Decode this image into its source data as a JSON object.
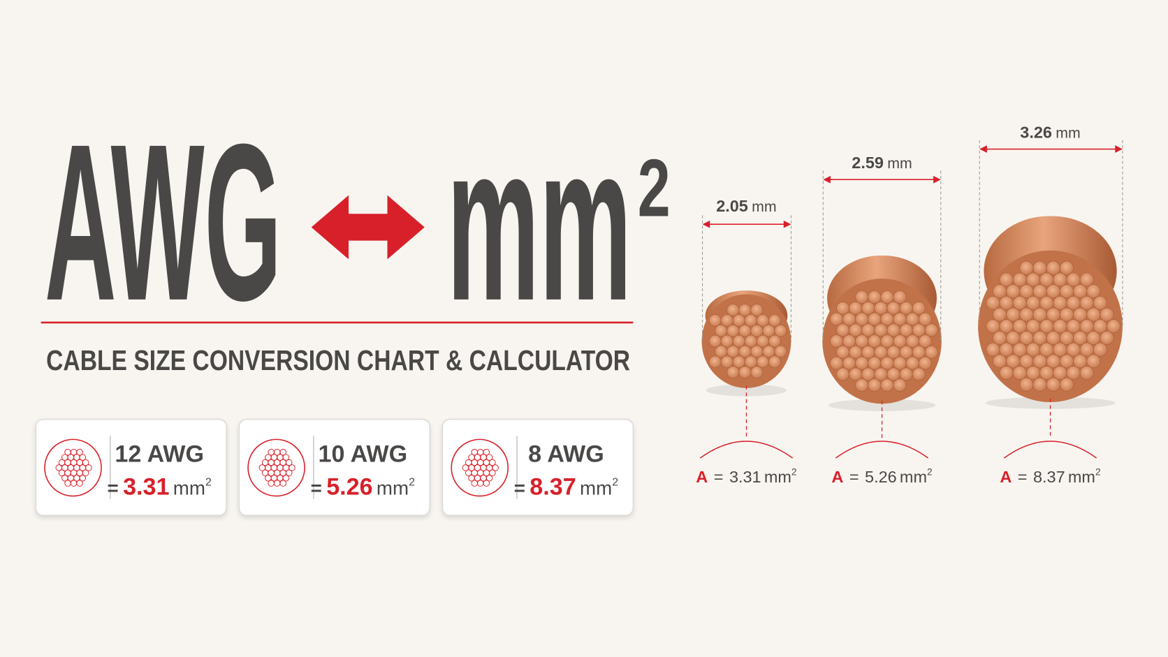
{
  "header": {
    "title_left": "AWG",
    "title_right": "mm",
    "title_exponent": "2",
    "subtitle": "CABLE SIZE CONVERSION CHART & CALCULATOR"
  },
  "cards": [
    {
      "gauge": "12 AWG",
      "equals": "=",
      "area": "3.31",
      "unit": "mm",
      "exponent": "2"
    },
    {
      "gauge": "10 AWG",
      "equals": "=",
      "area": "5.26",
      "unit": "mm",
      "exponent": "2"
    },
    {
      "gauge": "8 AWG",
      "equals": "=",
      "area": "8.37",
      "unit": "mm",
      "exponent": "2"
    }
  ],
  "wires": [
    {
      "diameter": "2.05",
      "diameter_unit": "mm",
      "area_symbol": "A",
      "equals": "=",
      "area": "3.31",
      "area_unit": "mm",
      "exponent": "2"
    },
    {
      "diameter": "2.59",
      "diameter_unit": "mm",
      "area_symbol": "A",
      "equals": "=",
      "area": "5.26",
      "area_unit": "mm",
      "exponent": "2"
    },
    {
      "diameter": "3.26",
      "diameter_unit": "mm",
      "area_symbol": "A",
      "equals": "=",
      "area": "8.37",
      "area_unit": "mm",
      "exponent": "2"
    }
  ]
}
